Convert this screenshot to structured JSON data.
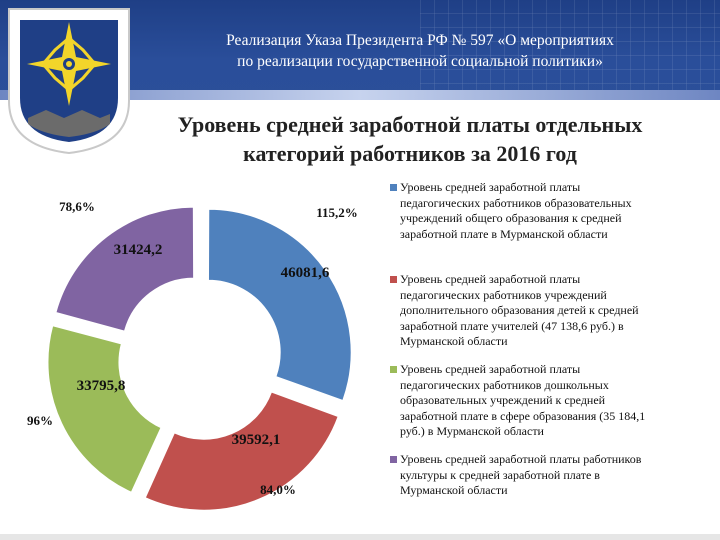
{
  "header": {
    "line1": "Реализация Указа Президента РФ № 597 «О мероприятиях",
    "line2": "по реализации государственной социальной политики»"
  },
  "subtitle": {
    "line1": "Уровень средней заработной платы отдельных",
    "line2": "категорий работников за 2016 год"
  },
  "emblem": {
    "icon": "star-emblem-icon",
    "colors": {
      "field": "#1f3f86",
      "star": "#f2d52a",
      "base": "#6b6b6b"
    }
  },
  "chart_data": {
    "type": "pie",
    "title": "",
    "series": [
      {
        "name": "Уровень средней заработной платы педагогических работников образовательных учреждений общего образования к средней заработной плате в Мурманской области",
        "value": 46081.6,
        "value_label": "46081,6",
        "percent_label": "115,2%",
        "color": "#4f81bd"
      },
      {
        "name": "Уровень средней заработной платы педагогических работников учреждений дополнительного образования детей к средней заработной плате учителей (47 138,6 руб.) в Мурманской области",
        "value": 39592.1,
        "value_label": "39592,1",
        "percent_label": "84,0%",
        "color": "#c0504d"
      },
      {
        "name": "Уровень средней заработной платы педагогических работников дошкольных образовательных учреждений к средней заработной плате в сфере образования (35 184,1 руб.) в Мурманской области",
        "value": 33795.8,
        "value_label": "33795,8",
        "percent_label": "96%",
        "color": "#9bbb59"
      },
      {
        "name": "Уровень средней заработной платы работников культуры к средней заработной плате в Мурманской области",
        "value": 31424.2,
        "value_label": "31424,2",
        "percent_label": "78,6%",
        "color": "#8064a2"
      }
    ],
    "exploded": true,
    "legend_position": "right"
  },
  "legend": {
    "items": [
      {
        "lines": [
          "Уровень средней заработной платы",
          "педагогических работников образовательных",
          "учреждений общего образования к средней",
          "заработной плате в Мурманской области"
        ]
      },
      {
        "lines": [
          "Уровень средней заработной платы",
          "педагогических работников учреждений",
          "дополнительного образования детей к средней",
          "заработной плате учителей (47 138,6 руб.) в",
          "Мурманской области"
        ]
      },
      {
        "lines": [
          "Уровень средней заработной платы",
          "педагогических работников дошкольных",
          "образовательных учреждений   к   средней",
          "заработной плате в сфере образования (35 184,1",
          "руб.) в Мурманской области"
        ]
      },
      {
        "lines": [
          "Уровень средней заработной платы работников",
          "культуры к средней заработной плате в",
          "Мурманской области"
        ]
      }
    ]
  }
}
